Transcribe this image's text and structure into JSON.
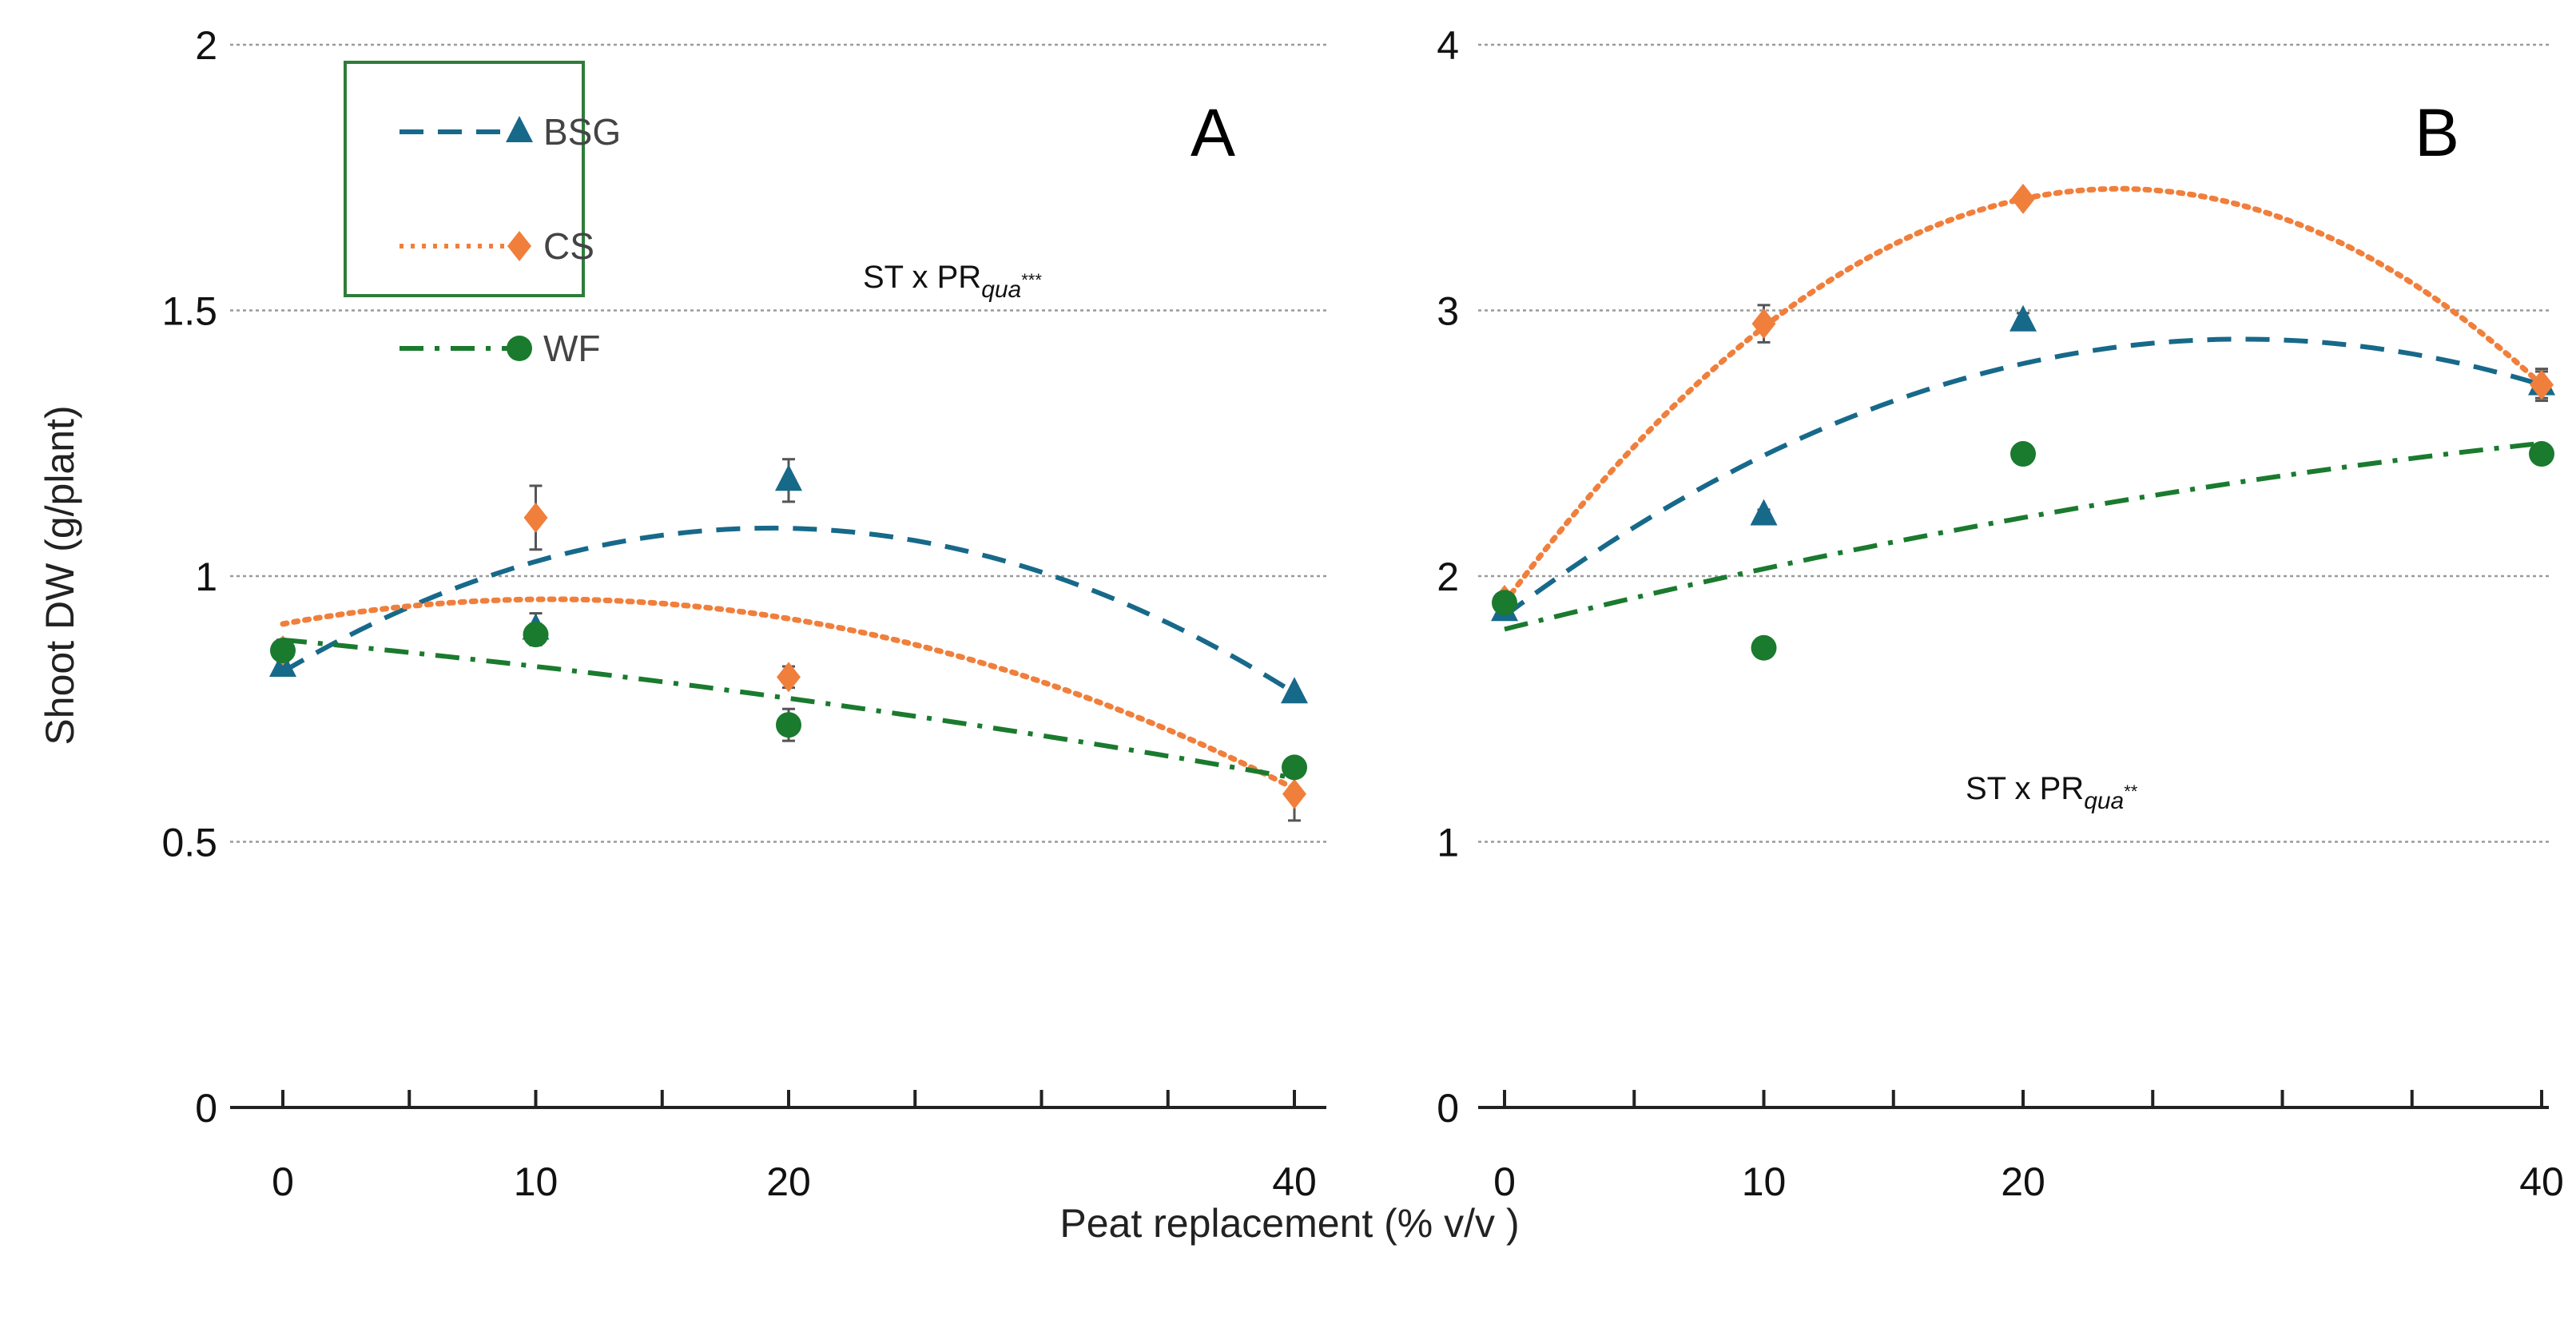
{
  "chart_data": [
    {
      "type": "scatter",
      "panel_label": "A",
      "annotation": {
        "main": "ST x PR",
        "sub": "qua",
        "sup": "***"
      },
      "ylim": [
        0,
        2
      ],
      "yticks": [
        0,
        0.5,
        1,
        1.5,
        2
      ],
      "ytick_labels": [
        "0",
        "0.5",
        "1",
        "1.5",
        "2"
      ],
      "xlim": [
        0,
        40
      ],
      "xticks": [
        0,
        10,
        20,
        40
      ],
      "xtick_labels": [
        "0",
        "10",
        "20",
        "40"
      ],
      "minor_xticks": [
        0,
        5,
        10,
        15,
        20,
        25,
        30,
        35,
        40
      ],
      "grid": "horizontal-dotted",
      "x": [
        0,
        10,
        20,
        40
      ],
      "series": [
        {
          "name": "BSG",
          "marker": "triangle",
          "line": "dashed",
          "values": [
            0.83,
            0.9,
            1.18,
            0.78
          ],
          "errors": [
            0.01,
            0.03,
            0.04,
            0.01
          ],
          "fit_at_0_20_40": [
            0.82,
            1.09,
            0.78
          ]
        },
        {
          "name": "CS",
          "marker": "diamond",
          "line": "dotted",
          "values": [
            0.86,
            1.11,
            0.81,
            0.59
          ],
          "errors": [
            0.01,
            0.06,
            0.02,
            0.05
          ],
          "fit_at_0_20_40": [
            0.91,
            0.92,
            0.6
          ]
        },
        {
          "name": "WF",
          "marker": "circle",
          "line": "dash-dot",
          "values": [
            0.86,
            0.89,
            0.72,
            0.64
          ],
          "errors": [
            0.02,
            0.02,
            0.03,
            0.01
          ],
          "fit_at_0_20_40": [
            0.88,
            0.77,
            0.62
          ]
        }
      ]
    },
    {
      "type": "scatter",
      "panel_label": "B",
      "annotation": {
        "main": "ST x PR",
        "sub": "qua",
        "sup": "**"
      },
      "ylim": [
        0,
        4
      ],
      "yticks": [
        0,
        1,
        2,
        3,
        4
      ],
      "ytick_labels": [
        "0",
        "1",
        "2",
        "3",
        "4"
      ],
      "xlim": [
        0,
        40
      ],
      "xticks": [
        0,
        10,
        20,
        40
      ],
      "xtick_labels": [
        "0",
        "10",
        "20",
        "40"
      ],
      "minor_xticks": [
        0,
        5,
        10,
        15,
        20,
        25,
        30,
        35,
        40
      ],
      "grid": "horizontal-dotted",
      "x": [
        0,
        10,
        20,
        40
      ],
      "series": [
        {
          "name": "BSG",
          "marker": "triangle",
          "line": "dashed",
          "values": [
            1.87,
            2.23,
            2.96,
            2.72
          ],
          "errors": [
            0.02,
            0.02,
            0.03,
            0.05
          ],
          "fit_at_0_20_40": [
            1.85,
            2.8,
            2.72
          ]
        },
        {
          "name": "CS",
          "marker": "diamond",
          "line": "dotted",
          "values": [
            1.91,
            2.95,
            3.42,
            2.72
          ],
          "errors": [
            0.02,
            0.07,
            0.02,
            0.06
          ],
          "fit_at_0_20_40": [
            1.9,
            3.42,
            2.72
          ]
        },
        {
          "name": "WF",
          "marker": "circle",
          "line": "dash-dot",
          "values": [
            1.9,
            1.73,
            2.46,
            2.46
          ],
          "errors": [
            0.02,
            0.02,
            0.02,
            0.02
          ],
          "fit_at_0_20_40": [
            1.8,
            2.22,
            2.5
          ]
        }
      ]
    }
  ],
  "ylabel": "Shoot DW (g/plant)",
  "xlabel": "Peat replacement (% v/v )",
  "legend": {
    "placement": "top-left of panel A",
    "entries": [
      "BSG",
      "CS",
      "WF"
    ]
  },
  "colors": {
    "BSG": "#17698a",
    "CS": "#f07f3c",
    "WF": "#1a7a2e",
    "legend_border": "#2e7d3a",
    "grid": "#9a9a9a"
  }
}
